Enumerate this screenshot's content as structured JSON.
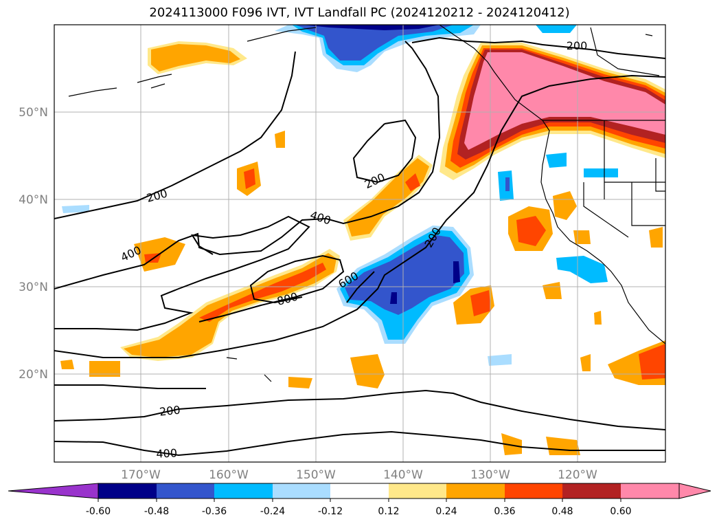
{
  "title": "2024113000 F096 IVT, IVT Landfall PC (2024120212 - 2024120412)",
  "lat_labels": [
    "50°N",
    "40°N",
    "30°N",
    "20°N"
  ],
  "lon_labels": [
    "170°W",
    "160°W",
    "150°W",
    "140°W",
    "130°W",
    "120°W"
  ],
  "contour_labels": [
    "200",
    "200",
    "200",
    "200",
    "200",
    "400",
    "400",
    "400",
    "600",
    "800"
  ],
  "colorbar": {
    "ticks": [
      "-0.60",
      "-0.48",
      "-0.36",
      "-0.24",
      "-0.12",
      "0.12",
      "0.24",
      "0.36",
      "0.48",
      "0.60"
    ],
    "colors": [
      "#9933cc",
      "#000088",
      "#3355cc",
      "#00bbff",
      "#aaddff",
      "#ffffff",
      "#ffe88a",
      "#ffa500",
      "#ff4500",
      "#b22222",
      "#ff88aa"
    ]
  },
  "map": {
    "lon_range": [
      -180,
      -110
    ],
    "lat_range": [
      10,
      60
    ],
    "projection": "equirectangular",
    "fields": [
      "IVT (contours)",
      "IVT Landfall PC (filled)"
    ]
  }
}
